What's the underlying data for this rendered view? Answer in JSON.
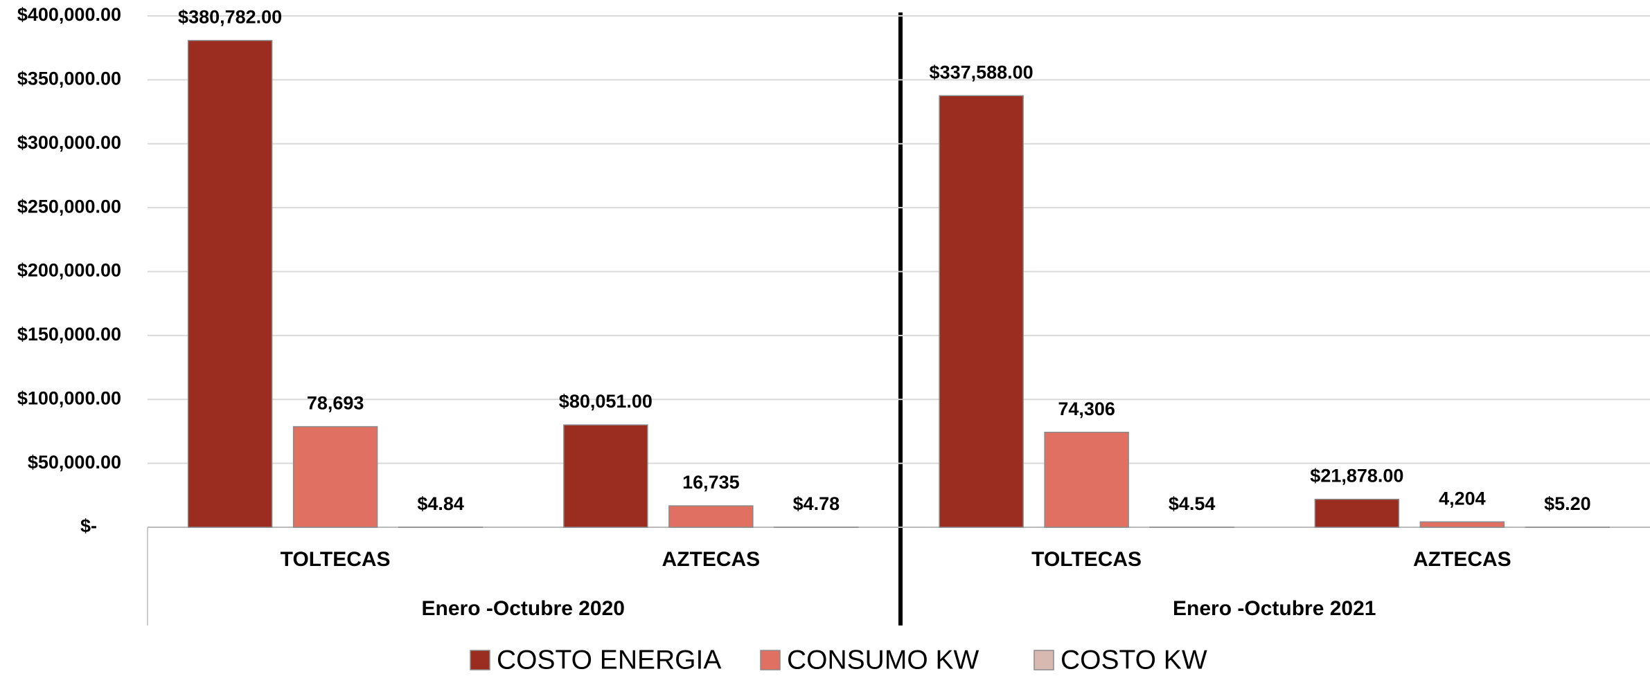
{
  "chart_data": {
    "type": "bar",
    "categories": [
      "TOLTECAS",
      "AZTECAS",
      "TOLTECAS",
      "AZTECAS"
    ],
    "groups": [
      "Enero -Octubre 2020",
      "Enero -Octubre 2021"
    ],
    "series": [
      {
        "name": "COSTO ENERGIA",
        "color": "#9b2d20",
        "values": [
          380782,
          80051,
          337588,
          21878
        ],
        "value_labels": [
          "$380,782.00",
          "$80,051.00",
          "$337,588.00",
          "$21,878.00"
        ]
      },
      {
        "name": "CONSUMO KW",
        "color": "#e07062",
        "values": [
          78693,
          16735,
          74306,
          4204
        ],
        "value_labels": [
          "78,693",
          "16,735",
          "74,306",
          "4,204"
        ]
      },
      {
        "name": "COSTO KW",
        "color": "#d8b9b2",
        "values": [
          4.84,
          4.78,
          4.54,
          5.2
        ],
        "value_labels": [
          "$4.84",
          "$4.78",
          "$4.54",
          "$5.20"
        ]
      }
    ],
    "ylim": [
      0,
      400000
    ],
    "yticks": [
      {
        "value": 0,
        "label": "$-"
      },
      {
        "value": 50000,
        "label": "$50,000.00"
      },
      {
        "value": 100000,
        "label": "$100,000.00"
      },
      {
        "value": 150000,
        "label": "$150,000.00"
      },
      {
        "value": 200000,
        "label": "$200,000.00"
      },
      {
        "value": 250000,
        "label": "$250,000.00"
      },
      {
        "value": 300000,
        "label": "$300,000.00"
      },
      {
        "value": 350000,
        "label": "$350,000.00"
      },
      {
        "value": 400000,
        "label": "$400,000.00"
      }
    ],
    "grid": true,
    "legend": "bottom"
  }
}
